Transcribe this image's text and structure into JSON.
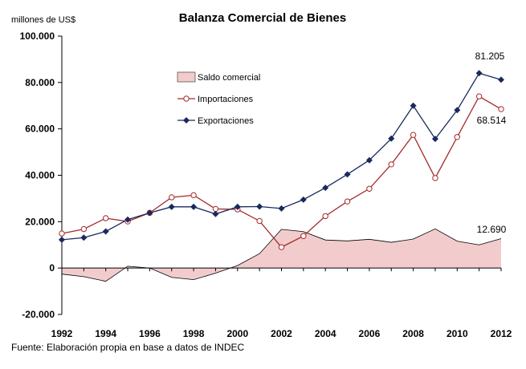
{
  "chart_data": {
    "type": "line",
    "title": "Balanza Comercial de Bienes",
    "ylabel": "millones de US$",
    "xlabel": "",
    "x": [
      1992,
      1993,
      1994,
      1995,
      1996,
      1997,
      1998,
      1999,
      2000,
      2001,
      2002,
      2003,
      2004,
      2005,
      2006,
      2007,
      2008,
      2009,
      2010,
      2011,
      2012
    ],
    "ylim": [
      -20000,
      100000
    ],
    "xlim": [
      1992,
      2012
    ],
    "y_ticks": [
      100000,
      80000,
      60000,
      40000,
      20000,
      0,
      -20000
    ],
    "y_tick_labels": [
      "100.000",
      "80.000",
      "60.000",
      "40.000",
      "20.000",
      "0",
      "-20.000"
    ],
    "x_ticks": [
      1992,
      1994,
      1996,
      1998,
      2000,
      2002,
      2004,
      2006,
      2008,
      2010,
      2012
    ],
    "x_tick_labels": [
      "1992",
      "1994",
      "1996",
      "1998",
      "2000",
      "2002",
      "2004",
      "2006",
      "2008",
      "2010",
      "2012"
    ],
    "grid": false,
    "legend_position": "top-left",
    "series": [
      {
        "name": "Saldo comercial",
        "type": "area",
        "color": "#f2cccc",
        "stroke": "#000000",
        "values": [
          -2600,
          -3700,
          -5700,
          800,
          0,
          -4000,
          -5000,
          -2200,
          1100,
          6200,
          16700,
          15700,
          12100,
          11700,
          12400,
          11100,
          12500,
          16900,
          11600,
          10000,
          12690
        ]
      },
      {
        "name": "Importaciones",
        "type": "line",
        "color": "#a52a2a",
        "marker": "circle",
        "values": [
          14900,
          16800,
          21500,
          20100,
          23800,
          30500,
          31400,
          25500,
          25300,
          20300,
          9000,
          13800,
          22400,
          28700,
          34200,
          44700,
          57400,
          38800,
          56500,
          74000,
          68514
        ]
      },
      {
        "name": "Exportaciones",
        "type": "line",
        "color": "#1a2a5e",
        "marker": "diamond",
        "values": [
          12200,
          13100,
          15800,
          20900,
          23800,
          26400,
          26400,
          23300,
          26400,
          26500,
          25700,
          29500,
          34600,
          40400,
          46500,
          55800,
          70000,
          55700,
          68100,
          84000,
          81205
        ]
      }
    ],
    "annotations": [
      "81.205",
      "68.514",
      "12.690"
    ]
  },
  "source_note": "Fuente: Elaboración propia en base a datos de INDEC"
}
